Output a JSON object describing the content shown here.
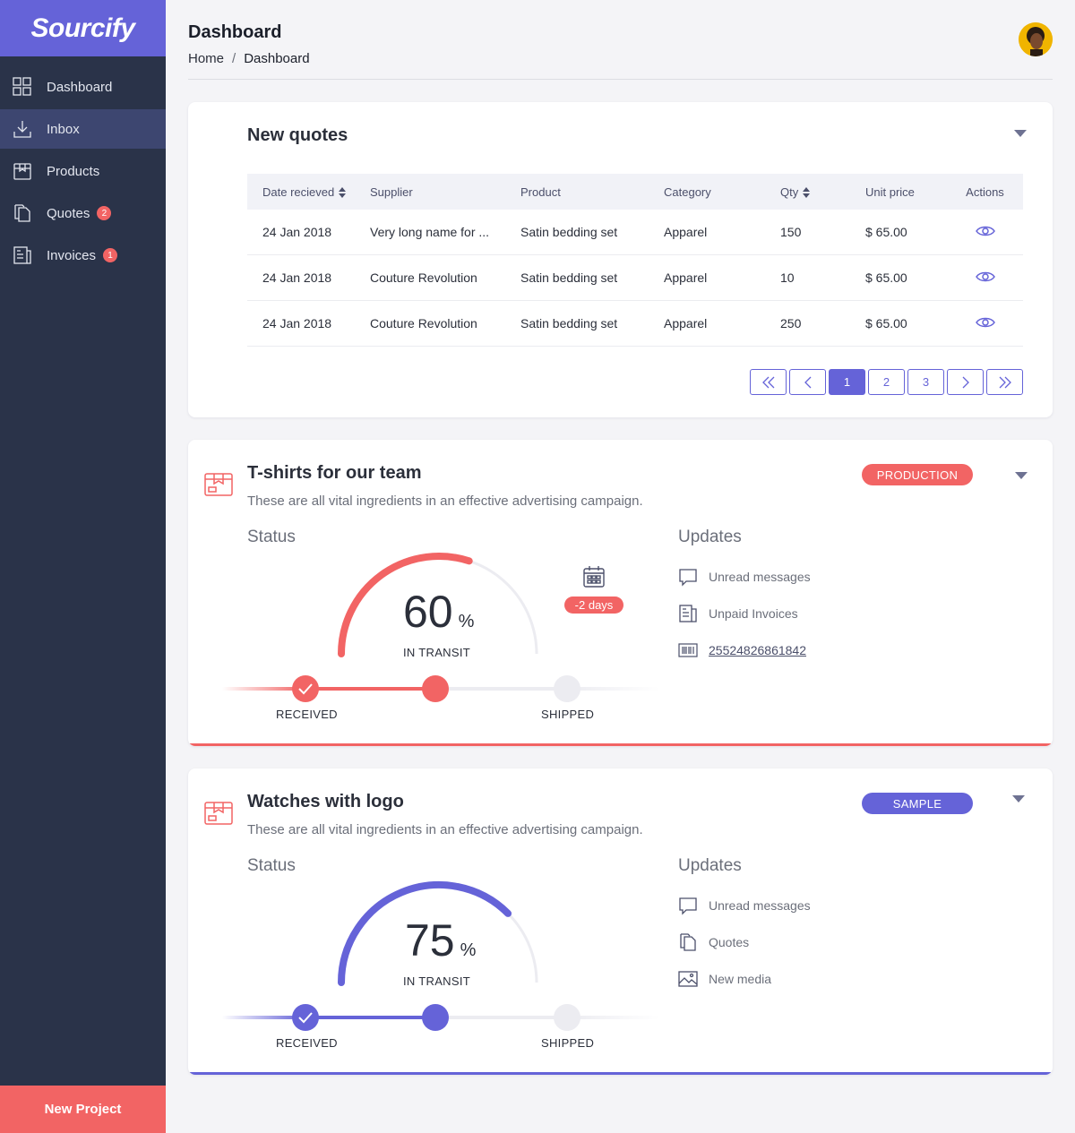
{
  "app": {
    "logo_text": "Sourcify",
    "brand_color": "#6563d8",
    "accent_color": "#f26464",
    "sidebar_color": "#2a3349"
  },
  "sidebar": {
    "items": [
      {
        "label": "Dashboard",
        "icon": "dashboard-icon",
        "active": false
      },
      {
        "label": "Inbox",
        "icon": "inbox-icon",
        "active": true
      },
      {
        "label": "Products",
        "icon": "products-icon",
        "active": false
      },
      {
        "label": "Quotes",
        "icon": "quotes-icon",
        "active": false,
        "badge": "2"
      },
      {
        "label": "Invoices",
        "icon": "invoices-icon",
        "active": false,
        "badge": "1"
      }
    ],
    "new_project_label": "New Project"
  },
  "header": {
    "title": "Dashboard",
    "breadcrumb": {
      "home": "Home",
      "separator": "/",
      "current": "Dashboard"
    }
  },
  "quotes": {
    "title": "New quotes",
    "columns": [
      "Date recieved",
      "Supplier",
      "Product",
      "Category",
      "Qty",
      "Unit price",
      "Actions"
    ],
    "rows": [
      {
        "date": "24 Jan 2018",
        "supplier": "Very long name for ...",
        "product": "Satin bedding set",
        "category": "Apparel",
        "qty": "150",
        "price": "$ 65.00"
      },
      {
        "date": "24 Jan 2018",
        "supplier": "Couture Revolution",
        "product": "Satin bedding set",
        "category": "Apparel",
        "qty": "10",
        "price": "$ 65.00"
      },
      {
        "date": "24 Jan 2018",
        "supplier": "Couture Revolution",
        "product": "Satin bedding set",
        "category": "Apparel",
        "qty": "250",
        "price": "$ 65.00"
      }
    ],
    "pagination": {
      "pages": [
        "1",
        "2",
        "3"
      ],
      "current": "1"
    }
  },
  "projects": [
    {
      "title": "T-shirts for our team",
      "subtitle": "These are all vital ingredients in an effective advertising campaign.",
      "stage": "PRODUCTION",
      "stage_color": "#f26464",
      "status_label": "Status",
      "progress_value": "60",
      "progress_fraction": 0.6,
      "percent_sign": "%",
      "progress_label": "IN TRANSIT",
      "color": "#f26464",
      "steps": {
        "received": "RECEIVED",
        "shipped": "SHIPPED"
      },
      "deadline": "-2 days",
      "updates_label": "Updates",
      "updates": [
        {
          "icon": "message-icon",
          "text": "Unread messages",
          "link": false
        },
        {
          "icon": "invoice-icon",
          "text": "Unpaid Invoices",
          "link": false
        },
        {
          "icon": "barcode-icon",
          "text": "25524826861842",
          "link": true
        }
      ]
    },
    {
      "title": "Watches with logo",
      "subtitle": "These are all vital ingredients in an effective advertising campaign.",
      "stage": "SAMPLE",
      "stage_color": "#6563d8",
      "status_label": "Status",
      "progress_value": "75",
      "progress_fraction": 0.75,
      "percent_sign": "%",
      "progress_label": "IN TRANSIT",
      "color": "#6563d8",
      "steps": {
        "received": "RECEIVED",
        "shipped": "SHIPPED"
      },
      "updates_label": "Updates",
      "updates": [
        {
          "icon": "message-icon",
          "text": "Unread messages",
          "link": false
        },
        {
          "icon": "quotes-doc-icon",
          "text": "Quotes",
          "link": false
        },
        {
          "icon": "image-icon",
          "text": "New media",
          "link": false
        }
      ]
    }
  ]
}
